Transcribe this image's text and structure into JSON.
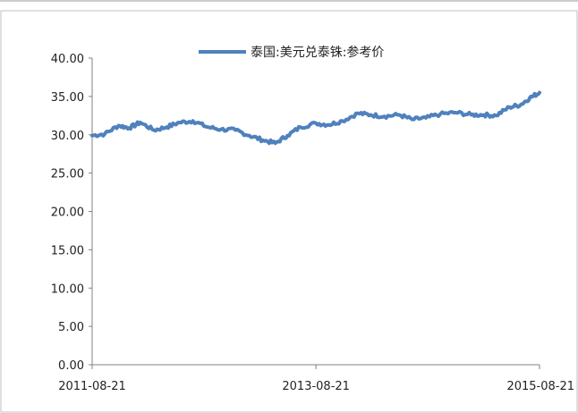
{
  "chart_data": {
    "type": "line",
    "title": "",
    "xlabel": "",
    "ylabel": "",
    "ylim": [
      0,
      40
    ],
    "yticks": [
      "0.00",
      "5.00",
      "10.00",
      "15.00",
      "20.00",
      "25.00",
      "30.00",
      "35.00",
      "40.00"
    ],
    "xticks": [
      "2011-08-21",
      "2013-08-21",
      "2015-08-21"
    ],
    "xrange": [
      "2011-08-21",
      "2015-08-21"
    ],
    "grid": false,
    "legend_position": "top",
    "series": [
      {
        "name": "泰国:美元兑泰铢:参考价",
        "color": "#4f81bd",
        "points": [
          [
            "2011-08-21",
            29.9
          ],
          [
            "2011-10-01",
            30.1
          ],
          [
            "2011-11-15",
            31.2
          ],
          [
            "2011-12-20",
            30.9
          ],
          [
            "2012-01-25",
            31.6
          ],
          [
            "2012-03-10",
            30.6
          ],
          [
            "2012-04-20",
            31.0
          ],
          [
            "2012-06-01",
            31.6
          ],
          [
            "2012-07-15",
            31.8
          ],
          [
            "2012-09-01",
            31.0
          ],
          [
            "2012-10-15",
            30.7
          ],
          [
            "2012-12-01",
            30.6
          ],
          [
            "2013-01-15",
            29.9
          ],
          [
            "2013-03-01",
            29.3
          ],
          [
            "2013-04-10",
            28.9
          ],
          [
            "2013-05-20",
            29.9
          ],
          [
            "2013-07-01",
            31.0
          ],
          [
            "2013-08-21",
            31.5
          ],
          [
            "2013-10-01",
            31.3
          ],
          [
            "2013-11-15",
            31.8
          ],
          [
            "2014-01-05",
            32.8
          ],
          [
            "2014-02-15",
            32.6
          ],
          [
            "2014-04-01",
            32.4
          ],
          [
            "2014-05-20",
            32.6
          ],
          [
            "2014-07-01",
            32.0
          ],
          [
            "2014-08-15",
            32.2
          ],
          [
            "2014-10-01",
            32.7
          ],
          [
            "2014-11-20",
            32.9
          ],
          [
            "2015-01-10",
            32.6
          ],
          [
            "2015-02-20",
            32.6
          ],
          [
            "2015-04-01",
            32.5
          ],
          [
            "2015-05-15",
            33.6
          ],
          [
            "2015-06-20",
            33.9
          ],
          [
            "2015-07-20",
            34.8
          ],
          [
            "2015-08-21",
            35.5
          ]
        ]
      }
    ]
  }
}
